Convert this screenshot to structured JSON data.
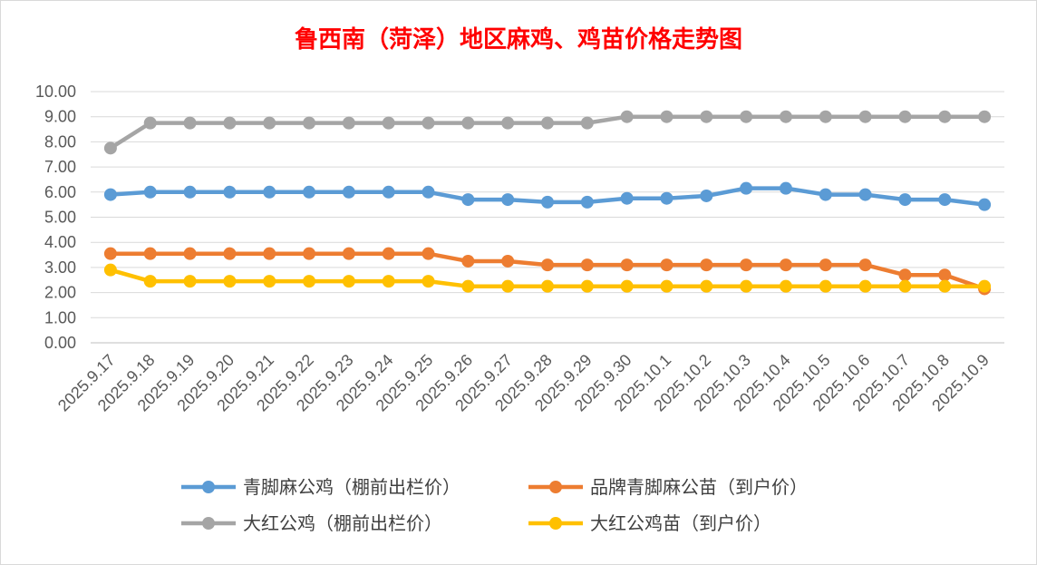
{
  "chart_data": {
    "type": "line",
    "title": "鲁西南（菏泽）地区麻鸡、鸡苗价格走势图",
    "xlabel": "",
    "ylabel": "",
    "ylim": [
      0,
      10
    ],
    "ytick_step": 1,
    "ytick_labels": [
      "0.00",
      "1.00",
      "2.00",
      "3.00",
      "4.00",
      "5.00",
      "6.00",
      "7.00",
      "8.00",
      "9.00",
      "10.00"
    ],
    "grid": true,
    "legend_position": "bottom",
    "categories": [
      "2025.9.17",
      "2025.9.18",
      "2025.9.19",
      "2025.9.20",
      "2025.9.21",
      "2025.9.22",
      "2025.9.23",
      "2025.9.24",
      "2025.9.25",
      "2025.9.26",
      "2025.9.27",
      "2025.9.28",
      "2025.9.29",
      "2025.9.30",
      "2025.10.1",
      "2025.10.2",
      "2025.10.3",
      "2025.10.4",
      "2025.10.5",
      "2025.10.6",
      "2025.10.7",
      "2025.10.8",
      "2025.10.9"
    ],
    "series": [
      {
        "name": "青脚麻公鸡（棚前出栏价）",
        "color": "#5b9bd5",
        "values": [
          5.9,
          6.0,
          6.0,
          6.0,
          6.0,
          6.0,
          6.0,
          6.0,
          6.0,
          5.7,
          5.7,
          5.6,
          5.6,
          5.75,
          5.75,
          5.85,
          6.15,
          6.15,
          5.9,
          5.9,
          5.7,
          5.7,
          5.5
        ]
      },
      {
        "name": "品牌青脚麻公苗（到户价）",
        "color": "#ed7d31",
        "values": [
          3.55,
          3.55,
          3.55,
          3.55,
          3.55,
          3.55,
          3.55,
          3.55,
          3.55,
          3.25,
          3.25,
          3.1,
          3.1,
          3.1,
          3.1,
          3.1,
          3.1,
          3.1,
          3.1,
          3.1,
          2.7,
          2.7,
          2.15
        ]
      },
      {
        "name": "大红公鸡（棚前出栏价）",
        "color": "#a5a5a5",
        "values": [
          7.75,
          8.75,
          8.75,
          8.75,
          8.75,
          8.75,
          8.75,
          8.75,
          8.75,
          8.75,
          8.75,
          8.75,
          8.75,
          9.0,
          9.0,
          9.0,
          9.0,
          9.0,
          9.0,
          9.0,
          9.0,
          9.0,
          9.0
        ]
      },
      {
        "name": "大红公鸡苗（到户价）",
        "color": "#ffc000",
        "values": [
          2.9,
          2.45,
          2.45,
          2.45,
          2.45,
          2.45,
          2.45,
          2.45,
          2.45,
          2.25,
          2.25,
          2.25,
          2.25,
          2.25,
          2.25,
          2.25,
          2.25,
          2.25,
          2.25,
          2.25,
          2.25,
          2.25,
          2.25
        ]
      }
    ]
  }
}
